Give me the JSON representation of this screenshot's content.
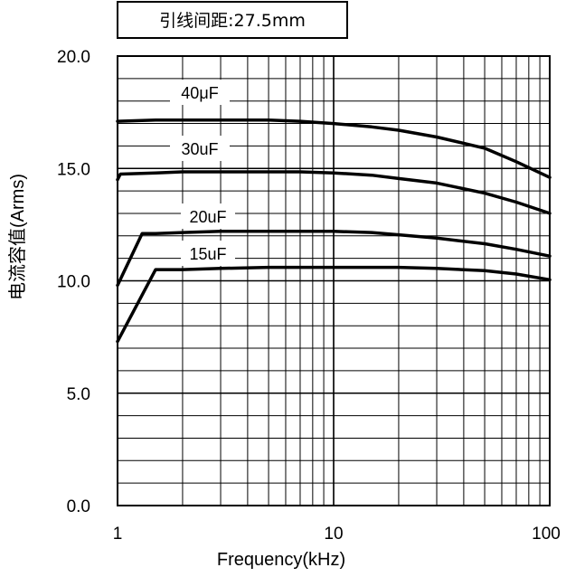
{
  "header": {
    "spacing_label": "引线间距:27.5mm"
  },
  "chart_data": {
    "type": "line",
    "xscale": "log",
    "xlim": [
      1,
      100
    ],
    "ylim": [
      0,
      20
    ],
    "xlabel": "Frequency(kHz)",
    "ylabel": "电流容值(Arms)",
    "grid": true,
    "x_ticks": [
      "1",
      "10",
      "100"
    ],
    "y_ticks": [
      "0.0",
      "5.0",
      "10.0",
      "15.0",
      "20.0"
    ],
    "series": [
      {
        "name": "40μF",
        "x": [
          1,
          1.5,
          2,
          3,
          5,
          7,
          10,
          15,
          20,
          30,
          50,
          70,
          100
        ],
        "y": [
          17.1,
          17.15,
          17.15,
          17.15,
          17.15,
          17.1,
          17.0,
          16.85,
          16.7,
          16.4,
          15.9,
          15.3,
          14.6
        ]
      },
      {
        "name": "30uF",
        "x": [
          1,
          1.03,
          1.5,
          2,
          3,
          5,
          7,
          10,
          15,
          20,
          30,
          50,
          70,
          100
        ],
        "y": [
          14.5,
          14.75,
          14.8,
          14.85,
          14.85,
          14.85,
          14.85,
          14.8,
          14.7,
          14.55,
          14.35,
          13.9,
          13.5,
          13.0
        ]
      },
      {
        "name": "20uF",
        "x": [
          1,
          1.3,
          1.5,
          2,
          3,
          5,
          7,
          10,
          15,
          20,
          30,
          50,
          70,
          100
        ],
        "y": [
          9.8,
          12.1,
          12.1,
          12.15,
          12.2,
          12.2,
          12.2,
          12.2,
          12.15,
          12.05,
          11.9,
          11.65,
          11.4,
          11.1
        ]
      },
      {
        "name": "15uF",
        "x": [
          1,
          1.5,
          2,
          3,
          5,
          7,
          10,
          15,
          20,
          30,
          50,
          70,
          100
        ],
        "y": [
          7.3,
          10.5,
          10.5,
          10.55,
          10.6,
          10.6,
          10.6,
          10.6,
          10.6,
          10.55,
          10.45,
          10.3,
          10.05
        ]
      }
    ]
  }
}
